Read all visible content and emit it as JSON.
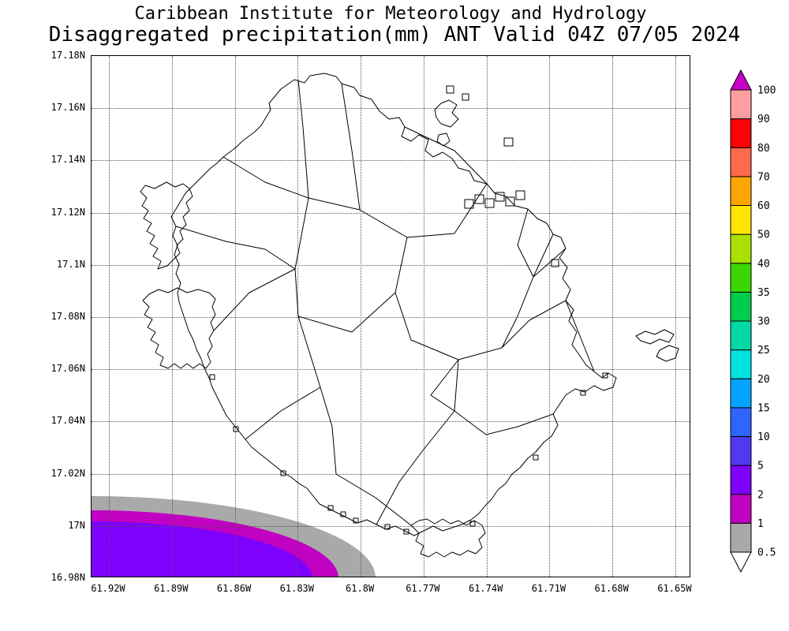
{
  "title": {
    "line1": "Caribbean Institute for Meteorology and Hydrology",
    "line2": "Disaggregated precipitation(mm) ANT Valid 04Z 07/05 2024"
  },
  "axes": {
    "lat_labels": [
      "17.18N",
      "17.16N",
      "17.14N",
      "17.12N",
      "17.1N",
      "17.08N",
      "17.06N",
      "17.04N",
      "17.02N",
      "17N",
      "16.98N"
    ],
    "lon_labels": [
      "61.92W",
      "61.89W",
      "61.86W",
      "61.83W",
      "61.8W",
      "61.77W",
      "61.74W",
      "61.71W",
      "61.68W",
      "61.65W"
    ]
  },
  "colorbar": {
    "levels_bottom_to_top": [
      "0.5",
      "1",
      "2",
      "5",
      "10",
      "15",
      "20",
      "25",
      "30",
      "35",
      "40",
      "50",
      "60",
      "70",
      "80",
      "90",
      "100"
    ],
    "segment_colors_bottom_to_top": [
      "#a9a9a9",
      "#c101c1",
      "#7e01fd",
      "#5039f0",
      "#2f64ff",
      "#01a5ff",
      "#00e1e1",
      "#01d8a4",
      "#02cc4e",
      "#3bd701",
      "#aae000",
      "#fee500",
      "#ffa501",
      "#ff6b4a",
      "#fc0204",
      "#ff9ea0"
    ],
    "above_max_color": "#c900c9",
    "below_min_color": "#ffffff",
    "units": "mm"
  },
  "precip_shading": {
    "location": "southwest corner of map, offshore",
    "bands": [
      {
        "range_mm": "0.5-1",
        "color": "#a9a9a9"
      },
      {
        "range_mm": "1-2",
        "color": "#c101c1"
      },
      {
        "range_mm": "2-5",
        "color": "#7e01fd"
      }
    ]
  }
}
